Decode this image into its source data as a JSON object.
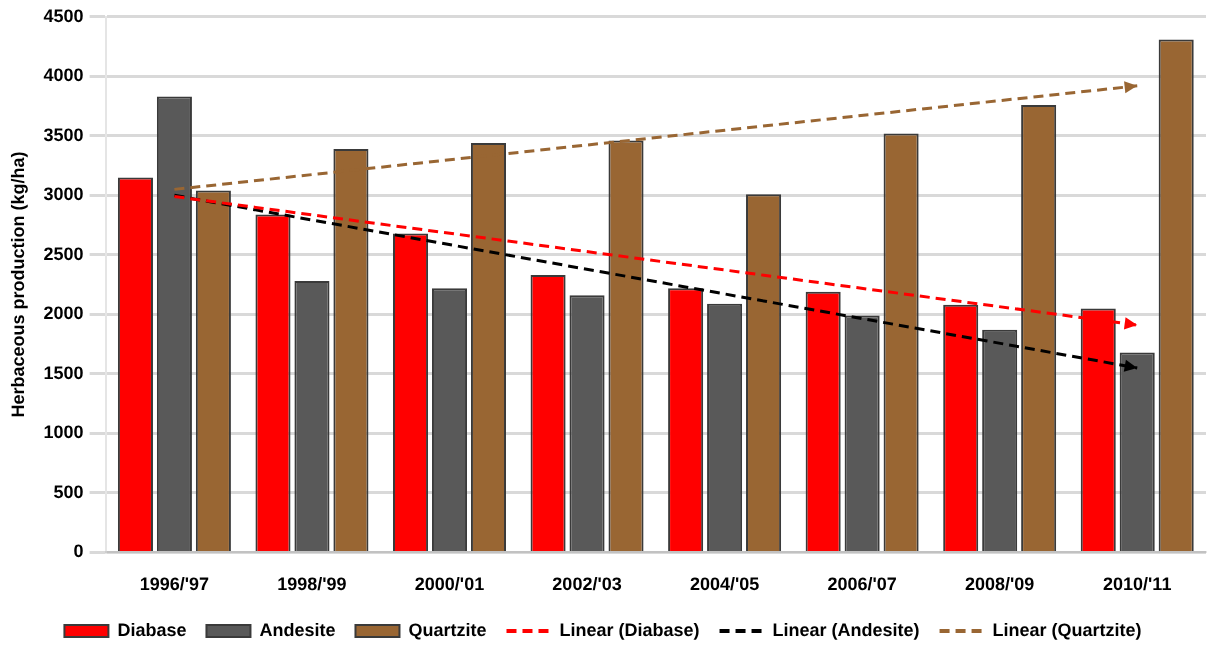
{
  "chart_data": {
    "type": "bar",
    "ylabel": "Herbaceous production (kg/ha)",
    "categories": [
      "1996/'97",
      "1998/'99",
      "2000/'01",
      "2002/'03",
      "2004/'05",
      "2006/'07",
      "2008/'09",
      "2010/'11"
    ],
    "series": [
      {
        "name": "Diabase",
        "color": "#ff0000",
        "values": [
          3150,
          2840,
          2680,
          2330,
          2220,
          2190,
          2080,
          2050
        ]
      },
      {
        "name": "Andesite",
        "color": "#595959",
        "values": [
          3830,
          2280,
          2220,
          2160,
          2090,
          1990,
          1870,
          1680
        ]
      },
      {
        "name": "Quartzite",
        "color": "#996633",
        "values": [
          3040,
          3390,
          3440,
          3460,
          3010,
          3520,
          3760,
          4310
        ]
      },
      {
        "name": "Linear (Diabase)",
        "type": "line",
        "line_style": "dashed",
        "color": "#ff0000",
        "x": [
          "1996/'97",
          "2010/'11"
        ],
        "values": [
          2990,
          1910
        ]
      },
      {
        "name": "Linear (Andesite)",
        "type": "line",
        "line_style": "dashed",
        "color": "#000000",
        "x": [
          "1996/'97",
          "2010/'11"
        ],
        "values": [
          3000,
          1550
        ]
      },
      {
        "name": "Linear (Quartzite)",
        "type": "line",
        "line_style": "dashed",
        "color": "#996633",
        "x": [
          "1996/'97",
          "2010/'11"
        ],
        "values": [
          3050,
          3920
        ]
      }
    ],
    "ylim": [
      0,
      4500
    ],
    "yticks": [
      0,
      500,
      1000,
      1500,
      2000,
      2500,
      3000,
      3500,
      4000,
      4500
    ],
    "grid": "y",
    "legend": "bottom"
  }
}
